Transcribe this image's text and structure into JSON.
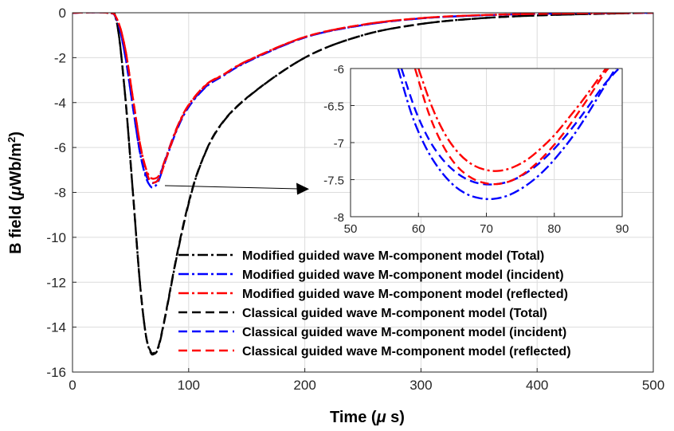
{
  "chart_data": [
    {
      "type": "line",
      "xlabel_text": "Time (",
      "xlabel_sym": "μ",
      "xlabel_unit": " s)",
      "ylabel_text": "B field (",
      "ylabel_sym": "μ",
      "ylabel_unit": "Wb/m",
      "ylabel_sup": "2",
      "ylabel_close": ")",
      "xlim": [
        0,
        500
      ],
      "ylim": [
        -16,
        0
      ],
      "xticks": [
        0,
        100,
        200,
        300,
        400,
        500
      ],
      "yticks": [
        0,
        -2,
        -4,
        -6,
        -8,
        -10,
        -12,
        -14,
        -16
      ],
      "grid": true,
      "legend_position": "bottom-right",
      "series": [
        {
          "name": "Modified guided wave M-component model (Total)",
          "color": "#000000",
          "dash": "dashdot",
          "x": [
            0,
            30,
            38,
            45,
            52,
            58,
            63,
            67,
            70,
            74,
            80,
            90,
            100,
            110,
            125,
            150,
            200,
            250,
            300,
            350,
            400,
            450,
            500
          ],
          "y": [
            0,
            0,
            -0.4,
            -3.5,
            -8,
            -12,
            -14.3,
            -15.1,
            -15.2,
            -14.9,
            -13.5,
            -10.8,
            -8.5,
            -6.8,
            -5.2,
            -3.8,
            -2.0,
            -1.0,
            -0.5,
            -0.25,
            -0.12,
            -0.05,
            0
          ]
        },
        {
          "name": "Modified guided wave M-component model (incident)",
          "color": "#0000ff",
          "dash": "dashdot",
          "x": [
            0,
            30,
            38,
            45,
            52,
            58,
            63,
            67,
            70,
            74,
            80,
            90,
            100,
            115,
            130,
            150,
            200,
            250,
            300,
            350,
            400,
            450,
            500
          ],
          "y": [
            0,
            0,
            -0.3,
            -1.8,
            -4.2,
            -6.2,
            -7.3,
            -7.72,
            -7.76,
            -7.5,
            -6.6,
            -5.2,
            -4.2,
            -3.3,
            -2.8,
            -2.2,
            -1.1,
            -0.55,
            -0.25,
            -0.12,
            -0.05,
            -0.02,
            0
          ]
        },
        {
          "name": "Modified guided wave M-component model (reflected)",
          "color": "#ff0000",
          "dash": "dashdot",
          "x": [
            0,
            30,
            38,
            45,
            52,
            58,
            63,
            67,
            71,
            75,
            80,
            90,
            100,
            115,
            130,
            150,
            200,
            250,
            300,
            350,
            400,
            450,
            500
          ],
          "y": [
            0,
            0,
            -0.25,
            -1.5,
            -3.8,
            -5.8,
            -6.9,
            -7.33,
            -7.38,
            -7.2,
            -6.5,
            -5.1,
            -4.1,
            -3.2,
            -2.75,
            -2.15,
            -1.08,
            -0.53,
            -0.24,
            -0.11,
            -0.05,
            -0.02,
            0
          ]
        },
        {
          "name": "Classical  guided wave M-component model (Total)",
          "color": "#000000",
          "dash": "dash",
          "x": [
            0,
            30,
            38,
            45,
            52,
            58,
            63,
            67,
            70,
            74,
            80,
            90,
            100,
            110,
            125,
            150,
            200,
            250,
            300,
            350,
            400,
            450,
            500
          ],
          "y": [
            0,
            0,
            -0.4,
            -3.5,
            -8,
            -12,
            -14.3,
            -15.05,
            -15.15,
            -14.85,
            -13.45,
            -10.75,
            -8.45,
            -6.78,
            -5.18,
            -3.79,
            -2.0,
            -1.0,
            -0.5,
            -0.25,
            -0.12,
            -0.05,
            0
          ]
        },
        {
          "name": "Classical guided wave M-component model (incident)",
          "color": "#0000ff",
          "dash": "dash",
          "x": [
            0,
            30,
            38,
            45,
            52,
            58,
            63,
            67,
            70,
            74,
            80,
            90,
            100,
            115,
            130,
            150,
            200,
            250,
            300,
            350,
            400,
            450,
            500
          ],
          "y": [
            0,
            0,
            -0.3,
            -1.8,
            -4.2,
            -6.2,
            -7.2,
            -7.54,
            -7.57,
            -7.4,
            -6.55,
            -5.15,
            -4.15,
            -3.28,
            -2.78,
            -2.18,
            -1.1,
            -0.55,
            -0.25,
            -0.12,
            -0.05,
            -0.02,
            0
          ]
        },
        {
          "name": "Classical guided wave M-component model (reflected)",
          "color": "#ff0000",
          "dash": "dash",
          "x": [
            0,
            30,
            38,
            45,
            52,
            58,
            63,
            67,
            71,
            75,
            80,
            90,
            100,
            115,
            130,
            150,
            200,
            250,
            300,
            350,
            400,
            450,
            500
          ],
          "y": [
            0,
            0,
            -0.25,
            -1.5,
            -3.8,
            -5.8,
            -6.95,
            -7.52,
            -7.55,
            -7.35,
            -6.6,
            -5.15,
            -4.12,
            -3.22,
            -2.76,
            -2.16,
            -1.08,
            -0.53,
            -0.24,
            -0.11,
            -0.05,
            -0.02,
            0
          ]
        }
      ]
    },
    {
      "type": "line",
      "xlim": [
        50,
        90
      ],
      "ylim": [
        -8,
        -6
      ],
      "xticks": [
        50,
        60,
        70,
        80,
        90
      ],
      "yticks": [
        -6,
        -6.5,
        -7,
        -7.5,
        -8
      ],
      "ytick_labels": [
        "-6",
        "-6.5",
        "-7",
        "-7.5",
        "-8"
      ],
      "grid": true,
      "series": [
        {
          "name": "Modified guided wave M-component model (incident)",
          "color": "#0000ff",
          "dash": "dashdot",
          "x": [
            57,
            59,
            61,
            63,
            65,
            67,
            69,
            71,
            73,
            75,
            77,
            79,
            81,
            83,
            85,
            87,
            89
          ],
          "y": [
            -6.0,
            -6.62,
            -7.05,
            -7.35,
            -7.56,
            -7.69,
            -7.75,
            -7.76,
            -7.72,
            -7.63,
            -7.5,
            -7.33,
            -7.12,
            -6.88,
            -6.6,
            -6.3,
            -6.0
          ]
        },
        {
          "name": "Classical guided wave M-component model (incident)",
          "color": "#0000ff",
          "dash": "dash",
          "x": [
            57.5,
            59.5,
            61.5,
            63.5,
            65.5,
            67.5,
            69.5,
            71.5,
            73.5,
            75.5,
            77.5,
            79.5,
            81.5,
            83.5,
            85.5,
            87.5,
            89.5
          ],
          "y": [
            -6.0,
            -6.55,
            -6.95,
            -7.22,
            -7.4,
            -7.51,
            -7.56,
            -7.56,
            -7.52,
            -7.43,
            -7.3,
            -7.13,
            -6.93,
            -6.7,
            -6.45,
            -6.2,
            -6.0
          ]
        },
        {
          "name": "Modified guided wave M-component model (reflected)",
          "color": "#ff0000",
          "dash": "dashdot",
          "x": [
            60,
            62,
            64,
            66,
            68,
            70,
            72,
            74,
            76,
            78,
            80,
            82,
            84,
            86,
            88,
            89
          ],
          "y": [
            -6.0,
            -6.52,
            -6.9,
            -7.15,
            -7.3,
            -7.37,
            -7.38,
            -7.33,
            -7.23,
            -7.08,
            -6.9,
            -6.68,
            -6.45,
            -6.2,
            -5.95,
            -5.85
          ]
        },
        {
          "name": "Classical guided wave M-component model (reflected)",
          "color": "#ff0000",
          "dash": "dash",
          "x": [
            59.5,
            61.5,
            63.5,
            65.5,
            67.5,
            69.5,
            71.5,
            73.5,
            75.5,
            77.5,
            79.5,
            81.5,
            83.5,
            85.5,
            87.5,
            89
          ],
          "y": [
            -6.0,
            -6.6,
            -7.02,
            -7.3,
            -7.46,
            -7.54,
            -7.56,
            -7.52,
            -7.42,
            -7.27,
            -7.08,
            -6.86,
            -6.6,
            -6.33,
            -6.05,
            -5.9
          ]
        }
      ]
    }
  ]
}
